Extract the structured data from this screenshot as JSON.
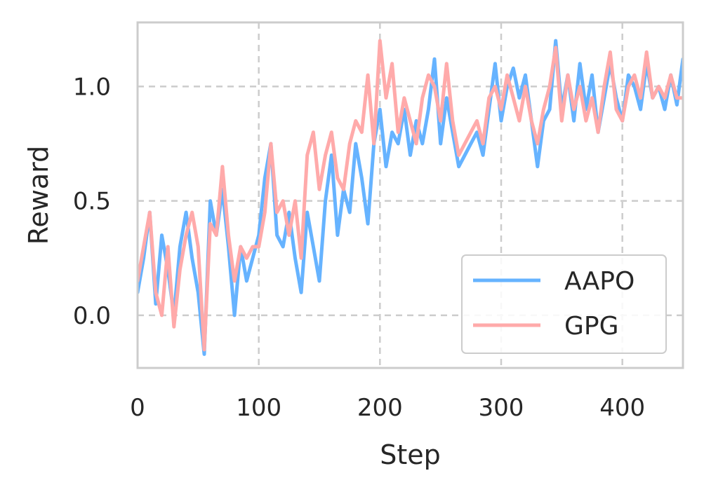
{
  "chart_data": {
    "type": "line",
    "title": "",
    "xlabel": "Step",
    "ylabel": "Reward",
    "xlim": [
      0,
      450
    ],
    "ylim": [
      -0.23,
      1.28
    ],
    "xticks": [
      0,
      100,
      200,
      300,
      400
    ],
    "xtick_labels": [
      "0",
      "100",
      "200",
      "300",
      "400"
    ],
    "yticks": [
      0.0,
      0.5,
      1.0
    ],
    "ytick_labels": [
      "0.0",
      "0.5",
      "1.0"
    ],
    "grid": true,
    "legend_position": "bottom-right",
    "series": [
      {
        "name": "AAPO",
        "color": "#66b3ff",
        "x": [
          0,
          5,
          10,
          15,
          20,
          25,
          30,
          35,
          40,
          45,
          50,
          55,
          60,
          65,
          70,
          75,
          80,
          85,
          90,
          95,
          100,
          105,
          110,
          115,
          120,
          125,
          130,
          135,
          140,
          145,
          150,
          155,
          160,
          165,
          170,
          175,
          180,
          185,
          190,
          195,
          200,
          205,
          210,
          215,
          220,
          225,
          230,
          235,
          240,
          245,
          250,
          255,
          260,
          265,
          270,
          275,
          280,
          285,
          290,
          295,
          300,
          305,
          310,
          315,
          320,
          325,
          330,
          335,
          340,
          345,
          350,
          355,
          360,
          365,
          370,
          375,
          380,
          385,
          390,
          395,
          400,
          405,
          410,
          415,
          420,
          425,
          430,
          435,
          440,
          445,
          450
        ],
        "y": [
          0.1,
          0.25,
          0.45,
          0.05,
          0.35,
          0.2,
          0.0,
          0.3,
          0.45,
          0.25,
          0.1,
          -0.17,
          0.5,
          0.35,
          0.55,
          0.3,
          0.0,
          0.3,
          0.15,
          0.25,
          0.35,
          0.6,
          0.75,
          0.35,
          0.3,
          0.45,
          0.25,
          0.1,
          0.45,
          0.3,
          0.15,
          0.5,
          0.7,
          0.35,
          0.55,
          0.45,
          0.75,
          0.6,
          0.4,
          0.75,
          0.9,
          0.65,
          0.8,
          0.75,
          0.9,
          0.7,
          0.85,
          0.75,
          0.9,
          1.12,
          0.75,
          0.95,
          0.8,
          0.65,
          0.7,
          0.75,
          0.8,
          0.7,
          0.9,
          1.1,
          0.85,
          1.0,
          1.08,
          0.95,
          1.05,
          0.85,
          0.65,
          0.85,
          0.9,
          1.2,
          0.9,
          1.05,
          0.85,
          1.1,
          0.9,
          1.05,
          0.8,
          0.95,
          1.1,
          0.95,
          0.85,
          1.05,
          1.0,
          0.9,
          1.1,
          0.95,
          1.0,
          0.9,
          1.05,
          0.92,
          1.12
        ]
      },
      {
        "name": "GPG",
        "color": "#ffaaaa",
        "x": [
          0,
          5,
          10,
          15,
          20,
          25,
          30,
          35,
          40,
          45,
          50,
          55,
          60,
          65,
          70,
          75,
          80,
          85,
          90,
          95,
          100,
          105,
          110,
          115,
          120,
          125,
          130,
          135,
          140,
          145,
          150,
          155,
          160,
          165,
          170,
          175,
          180,
          185,
          190,
          195,
          200,
          205,
          210,
          215,
          220,
          225,
          230,
          235,
          240,
          245,
          250,
          255,
          260,
          265,
          270,
          275,
          280,
          285,
          290,
          295,
          300,
          305,
          310,
          315,
          320,
          325,
          330,
          335,
          340,
          345,
          350,
          355,
          360,
          365,
          370,
          375,
          380,
          385,
          390,
          395,
          400,
          405,
          410,
          415,
          420,
          425,
          430,
          435,
          440,
          445,
          450
        ],
        "y": [
          0.15,
          0.3,
          0.45,
          0.1,
          0.0,
          0.3,
          -0.05,
          0.2,
          0.35,
          0.45,
          0.3,
          -0.15,
          0.4,
          0.35,
          0.65,
          0.35,
          0.15,
          0.3,
          0.25,
          0.3,
          0.3,
          0.45,
          0.75,
          0.45,
          0.5,
          0.35,
          0.5,
          0.25,
          0.7,
          0.8,
          0.55,
          0.7,
          0.8,
          0.6,
          0.55,
          0.75,
          0.85,
          0.8,
          1.05,
          0.75,
          1.2,
          0.95,
          1.1,
          0.8,
          0.95,
          0.85,
          0.75,
          0.95,
          1.05,
          1.0,
          0.85,
          1.1,
          0.85,
          0.7,
          0.75,
          0.8,
          0.85,
          0.75,
          0.95,
          1.0,
          0.9,
          1.05,
          0.95,
          0.85,
          1.0,
          0.85,
          0.75,
          0.9,
          1.0,
          1.17,
          0.85,
          1.05,
          0.9,
          1.0,
          0.85,
          0.95,
          0.8,
          1.0,
          1.15,
          0.9,
          0.85,
          1.0,
          1.05,
          0.95,
          1.15,
          0.95,
          1.0,
          0.95,
          1.05,
          0.95,
          0.95
        ]
      }
    ]
  }
}
